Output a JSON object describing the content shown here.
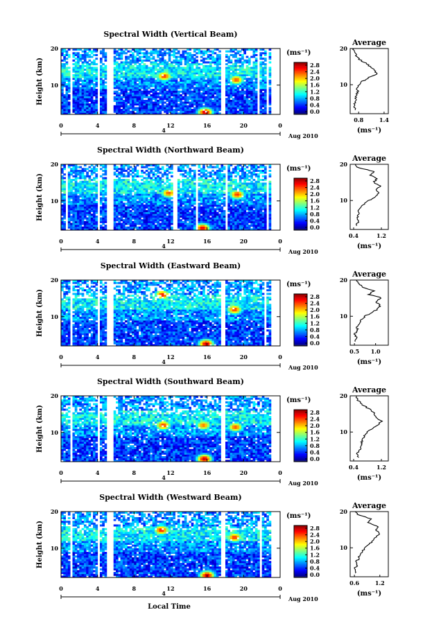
{
  "figure": {
    "xlabel": "Local Time",
    "date_label": "Aug 2010",
    "day_marker": "4",
    "colorbar_unit": "(ms⁻¹)",
    "colorbar_ticks": [
      "0.0",
      "0.4",
      "0.8",
      "1.2",
      "1.6",
      "2.0",
      "2.4",
      "2.8"
    ],
    "profile_title": "Average",
    "profile_xunit": "(ms⁻¹)"
  },
  "chart_data": [
    {
      "type": "heatmap",
      "title": "Spectral Width (Vertical Beam)",
      "ylabel": "Height (km)",
      "xlabel": "Local Time",
      "x_ticks": [
        "0",
        "4",
        "8",
        "12",
        "16",
        "20",
        "0"
      ],
      "y_ticks": [
        "20",
        "10"
      ],
      "xlim": [
        0,
        24
      ],
      "ylim": [
        2,
        20
      ],
      "colorbar": {
        "min": 0.0,
        "max": 3.0,
        "unit": "ms-1"
      },
      "gaps_hours": [
        [
          0.9,
          1.3
        ],
        [
          4.0,
          4.3
        ],
        [
          5.1,
          5.8
        ],
        [
          17.6,
          18.1
        ],
        [
          21.6,
          21.8
        ],
        [
          22.6,
          22.8
        ]
      ],
      "hotspots": [
        {
          "hour": 11.3,
          "height_km": 12.5,
          "value": 2.5
        },
        {
          "hour": 15.8,
          "height_km": 2.6,
          "value": 2.8
        },
        {
          "hour": 19.2,
          "height_km": 11.5,
          "value": 2.4
        }
      ],
      "profile": {
        "title": "Average",
        "xticks": [
          "0.8",
          "1.4"
        ],
        "xlim": [
          0.6,
          1.5
        ],
        "heights_km": [
          3,
          4,
          5,
          6,
          7,
          8,
          9,
          10,
          11,
          12,
          13,
          14,
          15,
          16,
          17,
          18,
          19,
          20
        ],
        "values": [
          0.72,
          0.7,
          0.71,
          0.73,
          0.74,
          0.78,
          0.77,
          0.8,
          0.9,
          1.05,
          1.22,
          1.18,
          1.08,
          0.96,
          0.82,
          0.74,
          0.7,
          0.68
        ]
      }
    },
    {
      "type": "heatmap",
      "title": "Spectral Width (Northward Beam)",
      "ylabel": "Height (km)",
      "xlabel": "Local Time",
      "x_ticks": [
        "0",
        "4",
        "8",
        "12",
        "16",
        "20",
        "0"
      ],
      "y_ticks": [
        "20",
        "10"
      ],
      "xlim": [
        0,
        24
      ],
      "ylim": [
        2,
        20
      ],
      "colorbar": {
        "min": 0.0,
        "max": 3.0,
        "unit": "ms-1"
      },
      "gaps_hours": [
        [
          0.5,
          0.8
        ],
        [
          4.0,
          4.3
        ],
        [
          5.1,
          5.8
        ],
        [
          12.3,
          12.7
        ],
        [
          14.8,
          15.1
        ],
        [
          17.9,
          18.3
        ],
        [
          22.6,
          22.8
        ]
      ],
      "hotspots": [
        {
          "hour": 11.8,
          "height_km": 12.2,
          "value": 2.4
        },
        {
          "hour": 15.5,
          "height_km": 2.6,
          "value": 2.7
        },
        {
          "hour": 19.3,
          "height_km": 11.8,
          "value": 2.5
        }
      ],
      "profile": {
        "title": "Average",
        "xticks": [
          "0.4",
          "1.2"
        ],
        "xlim": [
          0.3,
          1.4
        ],
        "heights_km": [
          3,
          4,
          5,
          6,
          7,
          8,
          9,
          10,
          11,
          12,
          13,
          14,
          15,
          16,
          17,
          18,
          19,
          20
        ],
        "values": [
          0.48,
          0.52,
          0.5,
          0.55,
          0.53,
          0.6,
          0.7,
          0.85,
          1.0,
          1.12,
          1.05,
          1.15,
          0.98,
          1.08,
          0.9,
          1.0,
          0.55,
          0.45
        ]
      }
    },
    {
      "type": "heatmap",
      "title": "Spectral Width (Eastward Beam)",
      "ylabel": "Height (km)",
      "xlabel": "Local Time",
      "x_ticks": [
        "0",
        "4",
        "8",
        "12",
        "16",
        "20",
        "0"
      ],
      "y_ticks": [
        "20",
        "10"
      ],
      "xlim": [
        0,
        24
      ],
      "ylim": [
        2,
        20
      ],
      "colorbar": {
        "min": 0.0,
        "max": 3.0,
        "unit": "ms-1"
      },
      "gaps_hours": [
        [
          0.9,
          1.3
        ],
        [
          4.0,
          4.3
        ],
        [
          5.1,
          5.8
        ],
        [
          17.6,
          18.1
        ],
        [
          22.3,
          22.5
        ]
      ],
      "hotspots": [
        {
          "hour": 11.1,
          "height_km": 16.0,
          "value": 2.6
        },
        {
          "hour": 15.9,
          "height_km": 2.6,
          "value": 2.8
        },
        {
          "hour": 19.0,
          "height_km": 12.0,
          "value": 2.5
        }
      ],
      "profile": {
        "title": "Average",
        "xticks": [
          "0.5",
          "1.0"
        ],
        "xlim": [
          0.4,
          1.3
        ],
        "heights_km": [
          3,
          4,
          5,
          6,
          7,
          8,
          9,
          10,
          11,
          12,
          13,
          14,
          15,
          16,
          17,
          18,
          19,
          20
        ],
        "values": [
          0.52,
          0.55,
          0.5,
          0.58,
          0.56,
          0.6,
          0.65,
          0.75,
          0.9,
          1.05,
          1.1,
          1.0,
          1.15,
          0.85,
          0.95,
          0.7,
          0.6,
          0.55
        ]
      }
    },
    {
      "type": "heatmap",
      "title": "Spectral Width (Southward Beam)",
      "ylabel": "Height (km)",
      "xlabel": "Local Time",
      "x_ticks": [
        "0",
        "4",
        "8",
        "12",
        "16",
        "20",
        "0"
      ],
      "y_ticks": [
        "20",
        "10"
      ],
      "xlim": [
        0,
        24
      ],
      "ylim": [
        2,
        20
      ],
      "colorbar": {
        "min": 0.0,
        "max": 3.0,
        "unit": "ms-1"
      },
      "gaps_hours": [
        [
          0.9,
          1.3
        ],
        [
          4.0,
          4.3
        ],
        [
          5.1,
          5.8
        ],
        [
          17.4,
          17.9
        ],
        [
          22.4,
          22.6
        ]
      ],
      "hotspots": [
        {
          "hour": 11.2,
          "height_km": 12.0,
          "value": 2.5
        },
        {
          "hour": 15.7,
          "height_km": 2.8,
          "value": 2.8
        },
        {
          "hour": 15.6,
          "height_km": 12.0,
          "value": 2.3
        },
        {
          "hour": 19.1,
          "height_km": 11.5,
          "value": 2.4
        }
      ],
      "profile": {
        "title": "Average",
        "xticks": [
          "0.4",
          "1.2"
        ],
        "xlim": [
          0.3,
          1.4
        ],
        "heights_km": [
          3,
          4,
          5,
          6,
          7,
          8,
          9,
          10,
          11,
          12,
          13,
          14,
          15,
          16,
          17,
          18,
          19,
          20
        ],
        "values": [
          0.55,
          0.5,
          0.58,
          0.6,
          0.62,
          0.66,
          0.72,
          0.8,
          0.95,
          1.1,
          1.2,
          1.05,
          1.0,
          0.9,
          0.75,
          0.6,
          0.5,
          0.48
        ]
      }
    },
    {
      "type": "heatmap",
      "title": "Spectral Width (Westward Beam)",
      "ylabel": "Height (km)",
      "xlabel": "Local Time",
      "x_ticks": [
        "0",
        "4",
        "8",
        "12",
        "16",
        "20",
        "0"
      ],
      "y_ticks": [
        "20",
        "10"
      ],
      "xlim": [
        0,
        24
      ],
      "ylim": [
        2,
        20
      ],
      "colorbar": {
        "min": 0.0,
        "max": 3.0,
        "unit": "ms-1"
      },
      "gaps_hours": [
        [
          0.9,
          1.3
        ],
        [
          4.0,
          4.3
        ],
        [
          5.1,
          5.8
        ],
        [
          17.6,
          18.1
        ],
        [
          21.8,
          22.0
        ]
      ],
      "hotspots": [
        {
          "hour": 11.0,
          "height_km": 15.0,
          "value": 2.6
        },
        {
          "hour": 16.0,
          "height_km": 2.6,
          "value": 2.8
        },
        {
          "hour": 19.0,
          "height_km": 13.0,
          "value": 2.5
        }
      ],
      "profile": {
        "title": "Average",
        "xticks": [
          "0.6",
          "1.2"
        ],
        "xlim": [
          0.5,
          1.4
        ],
        "heights_km": [
          3,
          4,
          5,
          6,
          7,
          8,
          9,
          10,
          11,
          12,
          13,
          14,
          15,
          16,
          17,
          18,
          19,
          20
        ],
        "values": [
          0.62,
          0.6,
          0.65,
          0.63,
          0.7,
          0.72,
          0.78,
          0.85,
          0.95,
          1.05,
          1.12,
          1.2,
          1.1,
          1.15,
          0.9,
          1.0,
          0.7,
          0.62
        ]
      }
    }
  ]
}
